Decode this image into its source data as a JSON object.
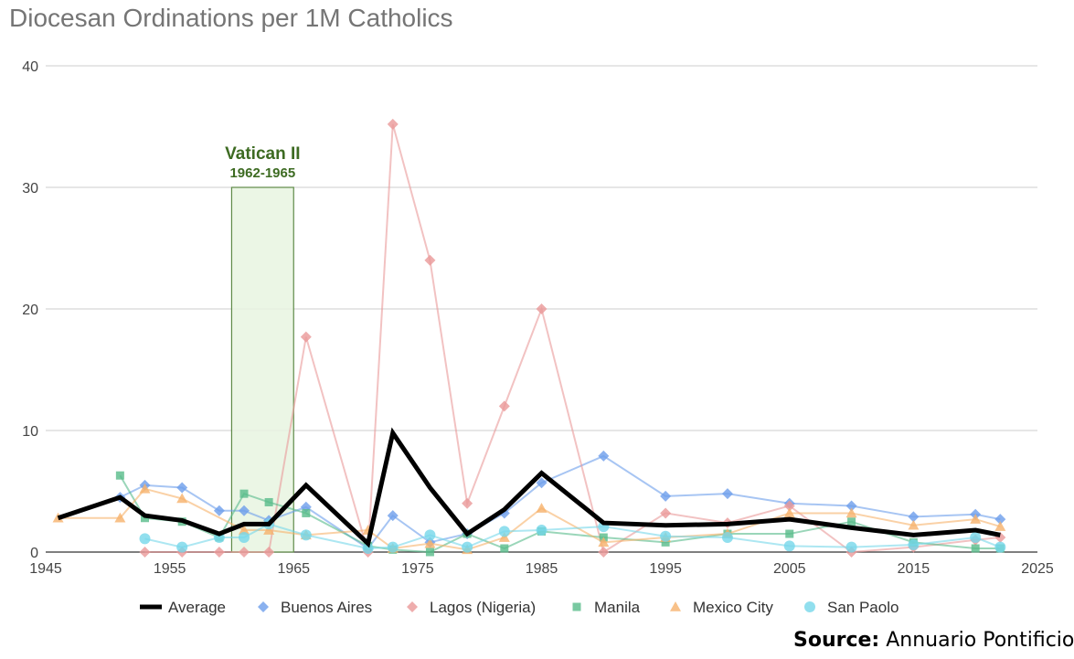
{
  "chart_data": {
    "type": "line",
    "title": "Diocesan Ordinations per 1M Catholics",
    "xlabel": "",
    "ylabel": "",
    "xlim": [
      1945,
      2025
    ],
    "ylim": [
      0,
      40
    ],
    "x_ticks": [
      1945,
      1955,
      1965,
      1975,
      1985,
      1995,
      2005,
      2015,
      2025
    ],
    "y_ticks": [
      0,
      10,
      20,
      30,
      40
    ],
    "grid": true,
    "legend_position": "bottom",
    "annotation": {
      "title": "Vatican II",
      "subtitle": "1962-1965",
      "x_start": 1960,
      "x_end": 1965,
      "y_top": 30,
      "fill": "#e8f5e0",
      "stroke": "#5f8a48",
      "text_color": "#3d6b22"
    },
    "source": {
      "label": "Source:",
      "text": "Annuario Pontificio"
    },
    "series": [
      {
        "name": "Average",
        "color": "#000000",
        "marker": "none",
        "points": [
          [
            1946,
            2.8
          ],
          [
            1951,
            4.5
          ],
          [
            1953,
            3.0
          ],
          [
            1956,
            2.6
          ],
          [
            1959,
            1.5
          ],
          [
            1961,
            2.3
          ],
          [
            1963,
            2.3
          ],
          [
            1966,
            5.5
          ],
          [
            1971,
            0.7
          ],
          [
            1973,
            9.8
          ],
          [
            1976,
            5.3
          ],
          [
            1979,
            1.5
          ],
          [
            1982,
            3.5
          ],
          [
            1985,
            6.5
          ],
          [
            1990,
            2.4
          ],
          [
            1995,
            2.2
          ],
          [
            2000,
            2.3
          ],
          [
            2005,
            2.7
          ],
          [
            2010,
            2.0
          ],
          [
            2015,
            1.4
          ],
          [
            2020,
            1.8
          ],
          [
            2022,
            1.4
          ]
        ]
      },
      {
        "name": "Buenos Aires",
        "color": "#6d9eeb",
        "marker": "diamond",
        "points": [
          [
            1951,
            4.5
          ],
          [
            1953,
            5.5
          ],
          [
            1956,
            5.3
          ],
          [
            1959,
            3.4
          ],
          [
            1961,
            3.4
          ],
          [
            1963,
            2.6
          ],
          [
            1966,
            3.7
          ],
          [
            1971,
            0.3
          ],
          [
            1973,
            3.0
          ],
          [
            1976,
            0.8
          ],
          [
            1979,
            1.5
          ],
          [
            1982,
            3.2
          ],
          [
            1985,
            5.7
          ],
          [
            1990,
            7.9
          ],
          [
            1995,
            4.6
          ],
          [
            2000,
            4.8
          ],
          [
            2005,
            4.0
          ],
          [
            2010,
            3.8
          ],
          [
            2015,
            2.9
          ],
          [
            2020,
            3.1
          ],
          [
            2022,
            2.7
          ]
        ]
      },
      {
        "name": "Lagos (Nigeria)",
        "color": "#ea9999",
        "marker": "diamond",
        "points": [
          [
            1953,
            0.0
          ],
          [
            1956,
            0.0
          ],
          [
            1959,
            0.0
          ],
          [
            1961,
            0.0
          ],
          [
            1963,
            0.0
          ],
          [
            1966,
            17.7
          ],
          [
            1971,
            0.0
          ],
          [
            1973,
            35.2
          ],
          [
            1976,
            24.0
          ],
          [
            1979,
            4.0
          ],
          [
            1982,
            12.0
          ],
          [
            1985,
            20.0
          ],
          [
            1990,
            0.0
          ],
          [
            1995,
            3.2
          ],
          [
            2000,
            2.4
          ],
          [
            2005,
            3.8
          ],
          [
            2010,
            0.0
          ],
          [
            2015,
            0.4
          ],
          [
            2020,
            1.0
          ],
          [
            2022,
            1.2
          ]
        ]
      },
      {
        "name": "Manila",
        "color": "#57bb8a",
        "marker": "square",
        "points": [
          [
            1951,
            6.3
          ],
          [
            1953,
            2.8
          ],
          [
            1956,
            2.5
          ],
          [
            1959,
            1.2
          ],
          [
            1961,
            4.8
          ],
          [
            1963,
            4.1
          ],
          [
            1966,
            3.2
          ],
          [
            1971,
            0.5
          ],
          [
            1973,
            0.2
          ],
          [
            1976,
            0.0
          ],
          [
            1979,
            1.5
          ],
          [
            1982,
            0.3
          ],
          [
            1985,
            1.7
          ],
          [
            1990,
            1.2
          ],
          [
            1995,
            0.8
          ],
          [
            2000,
            1.5
          ],
          [
            2005,
            1.5
          ],
          [
            2010,
            2.5
          ],
          [
            2015,
            0.8
          ],
          [
            2020,
            0.3
          ],
          [
            2022,
            0.3
          ]
        ]
      },
      {
        "name": "Mexico City",
        "color": "#f6b26b",
        "marker": "triangle",
        "points": [
          [
            1946,
            2.8
          ],
          [
            1951,
            2.8
          ],
          [
            1953,
            5.2
          ],
          [
            1956,
            4.4
          ],
          [
            1961,
            1.8
          ],
          [
            1963,
            1.8
          ],
          [
            1966,
            1.4
          ],
          [
            1971,
            1.8
          ],
          [
            1973,
            0.3
          ],
          [
            1976,
            0.7
          ],
          [
            1979,
            0.2
          ],
          [
            1982,
            1.2
          ],
          [
            1985,
            3.6
          ],
          [
            1990,
            0.8
          ],
          [
            1995,
            1.2
          ],
          [
            2000,
            1.5
          ],
          [
            2005,
            3.2
          ],
          [
            2010,
            3.2
          ],
          [
            2015,
            2.2
          ],
          [
            2020,
            2.7
          ],
          [
            2022,
            2.1
          ]
        ]
      },
      {
        "name": "San Paolo",
        "color": "#76d7ea",
        "marker": "circle",
        "points": [
          [
            1953,
            1.1
          ],
          [
            1956,
            0.4
          ],
          [
            1959,
            1.2
          ],
          [
            1961,
            1.2
          ],
          [
            1963,
            2.3
          ],
          [
            1966,
            1.4
          ],
          [
            1971,
            0.3
          ],
          [
            1973,
            0.4
          ],
          [
            1976,
            1.4
          ],
          [
            1979,
            0.4
          ],
          [
            1982,
            1.7
          ],
          [
            1985,
            1.8
          ],
          [
            1990,
            2.1
          ],
          [
            1995,
            1.3
          ],
          [
            2000,
            1.2
          ],
          [
            2005,
            0.5
          ],
          [
            2010,
            0.4
          ],
          [
            2015,
            0.6
          ],
          [
            2020,
            1.2
          ],
          [
            2022,
            0.4
          ]
        ]
      }
    ]
  }
}
